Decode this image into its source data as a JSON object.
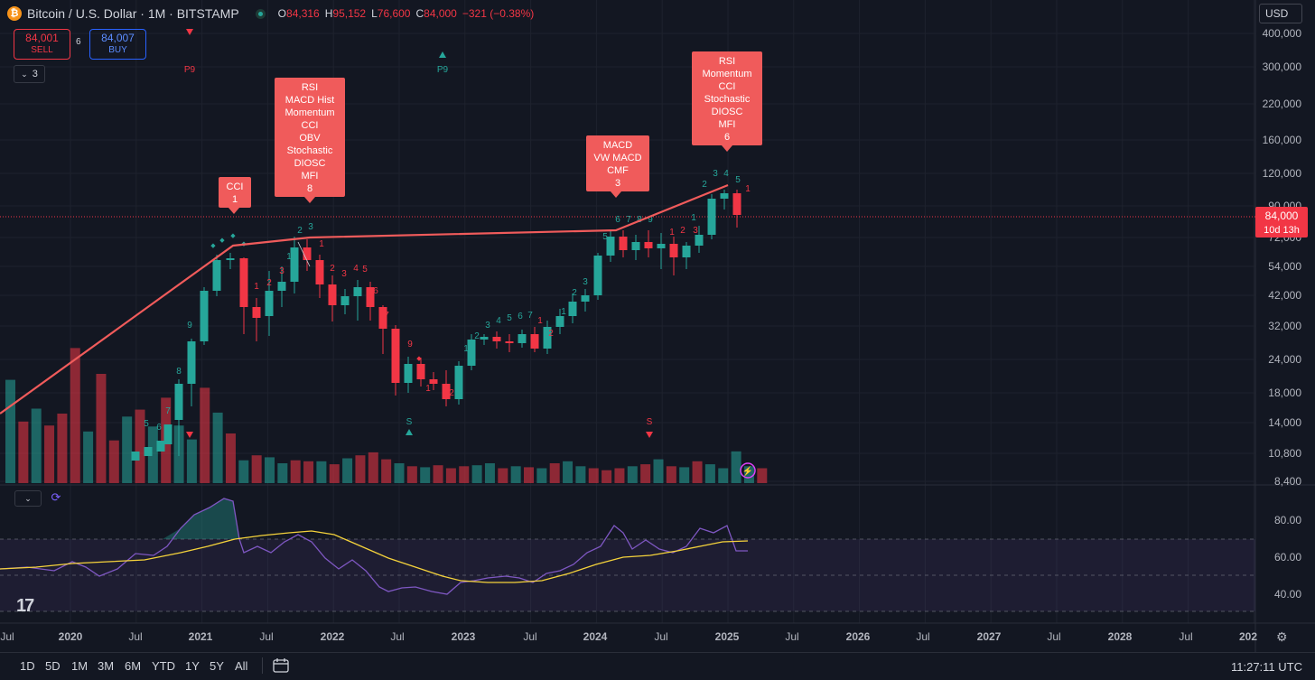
{
  "header": {
    "symbol_icon": "bitcoin-icon",
    "title": "Bitcoin / U.S. Dollar · 1M · BITSTAMP",
    "ohlc": [
      {
        "k": "O",
        "v": "84,316"
      },
      {
        "k": "H",
        "v": "95,152"
      },
      {
        "k": "L",
        "v": "76,600"
      },
      {
        "k": "C",
        "v": "84,000"
      }
    ],
    "change": "−321 (−0.38%)"
  },
  "trade": {
    "sell_price": "84,001",
    "sell_label": "SELL",
    "buy_price": "84,007",
    "buy_label": "BUY",
    "spread": "6"
  },
  "indicator_toggle": {
    "count": "3"
  },
  "currency": "USD",
  "price_axis": {
    "labels": [
      "400,000",
      "300,000",
      "220,000",
      "160,000",
      "120,000",
      "90,000",
      "72,000",
      "54,000",
      "42,000",
      "32,000",
      "24,000",
      "18,000",
      "14,000",
      "10,800",
      "8,400"
    ],
    "last_price": "84,000",
    "countdown": "10d 13h"
  },
  "rsi_axis": {
    "labels": [
      "80.00",
      "60.00",
      "40.00"
    ]
  },
  "time_axis": {
    "labels": [
      "Jul",
      "2020",
      "Jul",
      "2021",
      "Jul",
      "2022",
      "Jul",
      "2023",
      "Jul",
      "2024",
      "Jul",
      "2025",
      "Jul",
      "2026",
      "Jul",
      "2027",
      "Jul",
      "2028",
      "Jul",
      "202"
    ]
  },
  "annotations": [
    {
      "lines": [
        "CCI",
        "1"
      ]
    },
    {
      "lines": [
        "RSI",
        "MACD Hist",
        "Momentum",
        "CCI",
        "OBV",
        "Stochastic",
        "DIOSC",
        "MFI",
        "8"
      ]
    },
    {
      "lines": [
        "MACD",
        "VW MACD",
        "CMF",
        "3"
      ]
    },
    {
      "lines": [
        "RSI",
        "Momentum",
        "CCI",
        "Stochastic",
        "DIOSC",
        "MFI",
        "6"
      ]
    }
  ],
  "markers": {
    "p9": "P9",
    "s": "S"
  },
  "range_buttons": [
    "1D",
    "5D",
    "1M",
    "3M",
    "6M",
    "YTD",
    "1Y",
    "5Y",
    "All"
  ],
  "clock": "11:27:11 UTC",
  "colors": {
    "up": "#26a69a",
    "down": "#f23645",
    "bg": "#131722",
    "rsi": "#7e57c2",
    "rsi_ma": "#f5d33b",
    "divergence": "#f05b5b"
  }
}
